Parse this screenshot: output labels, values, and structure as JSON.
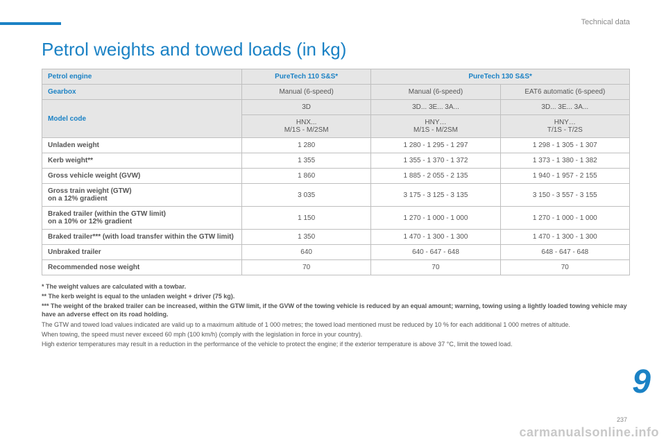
{
  "section_label": "Technical data",
  "title": "Petrol weights and towed loads (in kg)",
  "header": {
    "engine_label": "Petrol engine",
    "engine_cols": [
      "PureTech 110 S&S*",
      "PureTech 130 S&S*"
    ],
    "gearbox_label": "Gearbox",
    "gearbox_cols": [
      "Manual (6-speed)",
      "Manual (6-speed)",
      "EAT6 automatic (6-speed)"
    ],
    "modelcode_label": "Model code",
    "modelcode_row1": [
      "3D",
      "3D... 3E... 3A...",
      "3D... 3E... 3A..."
    ],
    "modelcode_row2": [
      "HNX...\nM/1S - M/2SM",
      "HNY…\nM/1S - M/2SM",
      "HNY…\nT/1S - T/2S"
    ]
  },
  "rows": [
    {
      "label": "Unladen weight",
      "v": [
        "1 280",
        "1 280 - 1 295 - 1 297",
        "1 298 - 1 305 - 1 307"
      ]
    },
    {
      "label": "Kerb weight**",
      "v": [
        "1 355",
        "1 355 - 1 370 - 1 372",
        "1 373 - 1 380 - 1 382"
      ]
    },
    {
      "label": "Gross vehicle weight (GVW)",
      "v": [
        "1 860",
        "1 885 - 2 055 - 2 135",
        "1 940 - 1 957 - 2 155"
      ]
    },
    {
      "label": "Gross train weight (GTW)\non a 12% gradient",
      "v": [
        "3 035",
        "3 175 - 3 125 - 3 135",
        "3 150 - 3 557 - 3 155"
      ]
    },
    {
      "label": "Braked trailer (within the GTW limit)\non a 10% or 12% gradient",
      "v": [
        "1 150",
        "1 270 - 1 000 - 1 000",
        "1 270 - 1 000 - 1 000"
      ]
    },
    {
      "label": "Braked trailer*** (with load transfer within the GTW limit)",
      "v": [
        "1 350",
        "1 470 - 1 300 - 1 300",
        "1 470 - 1 300 - 1 300"
      ]
    },
    {
      "label": "Unbraked trailer",
      "v": [
        "640",
        "640 - 647 - 648",
        "648 - 647 - 648"
      ]
    },
    {
      "label": "Recommended nose weight",
      "v": [
        "70",
        "70",
        "70"
      ]
    }
  ],
  "footnotes": {
    "f1": "* The weight values are calculated with a towbar.",
    "f2": "** The kerb weight is equal to the unladen weight + driver (75 kg).",
    "f3": "*** The weight of the braked trailer can be increased, within the GTW limit, if the GVW of the towing vehicle is reduced by an equal amount; warning, towing using a lightly loaded towing vehicle may have an adverse effect on its road holding.",
    "p1": "The GTW and towed load values indicated are valid up to a maximum altitude of 1 000 metres; the towed load mentioned must be reduced by 10 % for each additional 1 000 metres of altitude.",
    "p2": "When towing, the speed must never exceed 60 mph (100 km/h) (comply with the legislation in force in your country).",
    "p3": "High exterior temperatures may result in a reduction in the performance of the vehicle to protect the engine; if the exterior temperature is above 37 °C, limit the towed load."
  },
  "big_nine": "9",
  "watermark": "carmanualsonline.info",
  "page_number": "237",
  "style": {
    "accent": "#1b82c5",
    "header_bg": "#e6e6e6",
    "border": "#bfbfbf",
    "text": "#5a5a5a"
  }
}
